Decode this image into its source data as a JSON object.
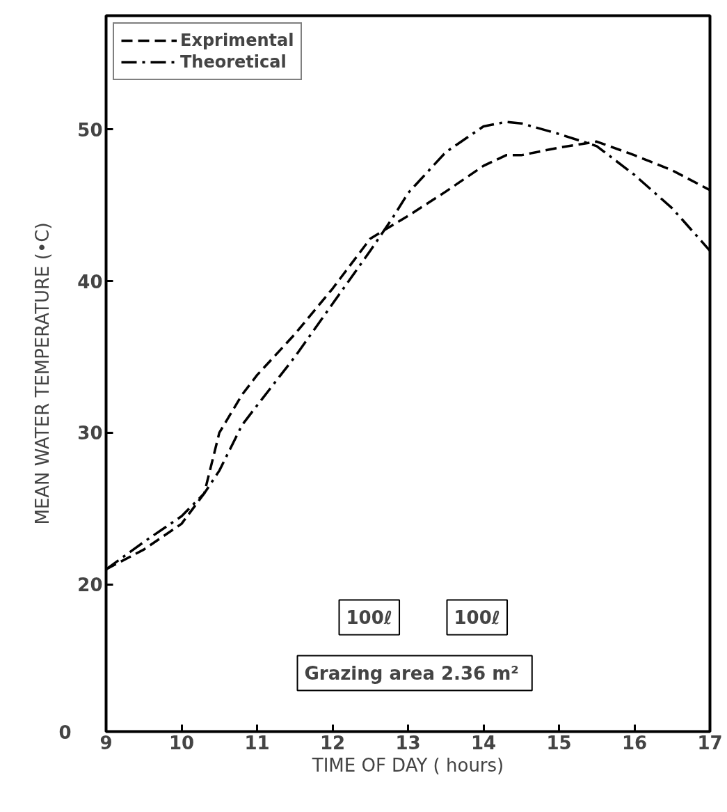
{
  "chart_data": {
    "type": "line",
    "xlabel": "TIME OF DAY ( hours)",
    "ylabel": "MEAN WATER TEMPERATURE (•C)",
    "x": [
      9,
      9.5,
      10,
      10.3,
      10.5,
      10.8,
      11,
      11.5,
      12,
      12.5,
      12.8,
      13,
      13.5,
      14,
      14.3,
      14.5,
      15,
      15.5,
      16,
      16.5,
      17
    ],
    "series": [
      {
        "name": "Exprimental",
        "color": "#000000",
        "line_style": "dashed",
        "values": [
          21,
          22.3,
          24,
          26,
          30,
          32.5,
          33.8,
          36.5,
          39.5,
          42.8,
          43.7,
          44.3,
          45.9,
          47.6,
          48.3,
          48.3,
          48.8,
          49.2,
          48.3,
          47.3,
          46
        ]
      },
      {
        "name": "Theoretical",
        "color": "#000000",
        "line_style": "dashdot",
        "values": [
          21,
          22.8,
          24.5,
          26,
          27.5,
          30.5,
          31.8,
          35,
          38.5,
          42,
          44.2,
          45.8,
          48.5,
          50.2,
          50.5,
          50.4,
          49.7,
          48.9,
          47,
          44.8,
          42
        ]
      }
    ],
    "xlim": [
      9,
      17
    ],
    "xticks": [
      9,
      10,
      11,
      12,
      13,
      14,
      15,
      16,
      17
    ],
    "ylim": [
      10.3,
      57.5
    ],
    "yticks": [
      20,
      30,
      40,
      50
    ],
    "grid": false,
    "legend": "top left",
    "annotations": [
      "0",
      "100ℓ",
      "100ℓ",
      "Grazing area  2.36 m²"
    ]
  }
}
